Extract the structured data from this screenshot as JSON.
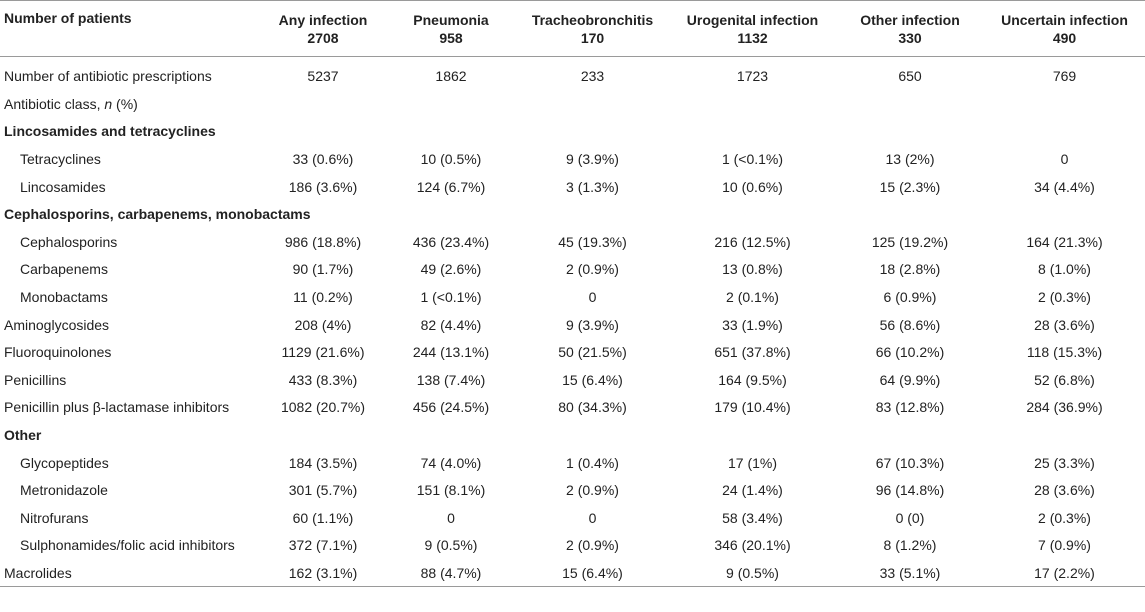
{
  "table": {
    "label_header": "Number of patients",
    "columns": [
      {
        "name": "Any infection",
        "count": "2708"
      },
      {
        "name": "Pneumonia",
        "count": "958"
      },
      {
        "name": "Tracheobronchitis",
        "count": "170"
      },
      {
        "name": "Urogenital infection",
        "count": "1132"
      },
      {
        "name": "Other infection",
        "count": "330"
      },
      {
        "name": "Uncertain infection",
        "count": "490"
      }
    ],
    "prescriptions_row": {
      "label": "Number of antibiotic prescriptions",
      "values": [
        "5237",
        "1862",
        "233",
        "1723",
        "650",
        "769"
      ]
    },
    "class_row": {
      "label_prefix": "Antibiotic class, ",
      "label_italic": "n",
      "label_suffix": " (%)"
    },
    "rows": [
      {
        "type": "section",
        "label": "Lincosamides and tetracyclines"
      },
      {
        "type": "indent",
        "label": "Tetracyclines",
        "values": [
          "33 (0.6%)",
          "10 (0.5%)",
          "9 (3.9%)",
          "1 (<0.1%)",
          "13 (2%)",
          "0"
        ]
      },
      {
        "type": "indent",
        "label": "Lincosamides",
        "values": [
          "186 (3.6%)",
          "124 (6.7%)",
          "3 (1.3%)",
          "10 (0.6%)",
          "15 (2.3%)",
          "34 (4.4%)"
        ]
      },
      {
        "type": "section",
        "label": "Cephalosporins, carbapenems, monobactams"
      },
      {
        "type": "indent",
        "label": "Cephalosporins",
        "values": [
          "986 (18.8%)",
          "436 (23.4%)",
          "45 (19.3%)",
          "216 (12.5%)",
          "125 (19.2%)",
          "164 (21.3%)"
        ]
      },
      {
        "type": "indent",
        "label": "Carbapenems",
        "values": [
          "90 (1.7%)",
          "49 (2.6%)",
          "2 (0.9%)",
          "13 (0.8%)",
          "18 (2.8%)",
          "8 (1.0%)"
        ]
      },
      {
        "type": "indent",
        "label": "Monobactams",
        "values": [
          "11 (0.2%)",
          "1 (<0.1%)",
          "0",
          "2 (0.1%)",
          "6 (0.9%)",
          "2 (0.3%)"
        ]
      },
      {
        "type": "plain",
        "label": "Aminoglycosides",
        "values": [
          "208 (4%)",
          "82 (4.4%)",
          "9 (3.9%)",
          "33 (1.9%)",
          "56 (8.6%)",
          "28 (3.6%)"
        ]
      },
      {
        "type": "plain",
        "label": "Fluoroquinolones",
        "values": [
          "1129 (21.6%)",
          "244 (13.1%)",
          "50 (21.5%)",
          "651 (37.8%)",
          "66 (10.2%)",
          "118 (15.3%)"
        ]
      },
      {
        "type": "plain",
        "label": "Penicillins",
        "values": [
          "433 (8.3%)",
          "138 (7.4%)",
          "15 (6.4%)",
          "164 (9.5%)",
          "64 (9.9%)",
          "52 (6.8%)"
        ]
      },
      {
        "type": "plain",
        "label": "Penicillin plus β-lactamase inhibitors",
        "values": [
          "1082 (20.7%)",
          "456 (24.5%)",
          "80 (34.3%)",
          "179 (10.4%)",
          "83 (12.8%)",
          "284 (36.9%)"
        ]
      },
      {
        "type": "section",
        "label": "Other"
      },
      {
        "type": "indent",
        "label": "Glycopeptides",
        "values": [
          "184 (3.5%)",
          "74 (4.0%)",
          "1 (0.4%)",
          "17 (1%)",
          "67 (10.3%)",
          "25 (3.3%)"
        ]
      },
      {
        "type": "indent",
        "label": "Metronidazole",
        "values": [
          "301 (5.7%)",
          "151 (8.1%)",
          "2 (0.9%)",
          "24 (1.4%)",
          "96 (14.8%)",
          "28 (3.6%)"
        ]
      },
      {
        "type": "indent",
        "label": "Nitrofurans",
        "values": [
          "60 (1.1%)",
          "0",
          "0",
          "58 (3.4%)",
          "0 (0)",
          "2 (0.3%)"
        ]
      },
      {
        "type": "indent",
        "label": "Sulphonamides/folic acid inhibitors",
        "values": [
          "372 (7.1%)",
          "9 (0.5%)",
          "2 (0.9%)",
          "346 (20.1%)",
          "8 (1.2%)",
          "7 (0.9%)"
        ]
      },
      {
        "type": "plain",
        "label": "Macrolides",
        "values": [
          "162 (3.1%)",
          "88 (4.7%)",
          "15 (6.4%)",
          "9 (0.5%)",
          "33 (5.1%)",
          "17 (2.2%)"
        ]
      }
    ]
  }
}
